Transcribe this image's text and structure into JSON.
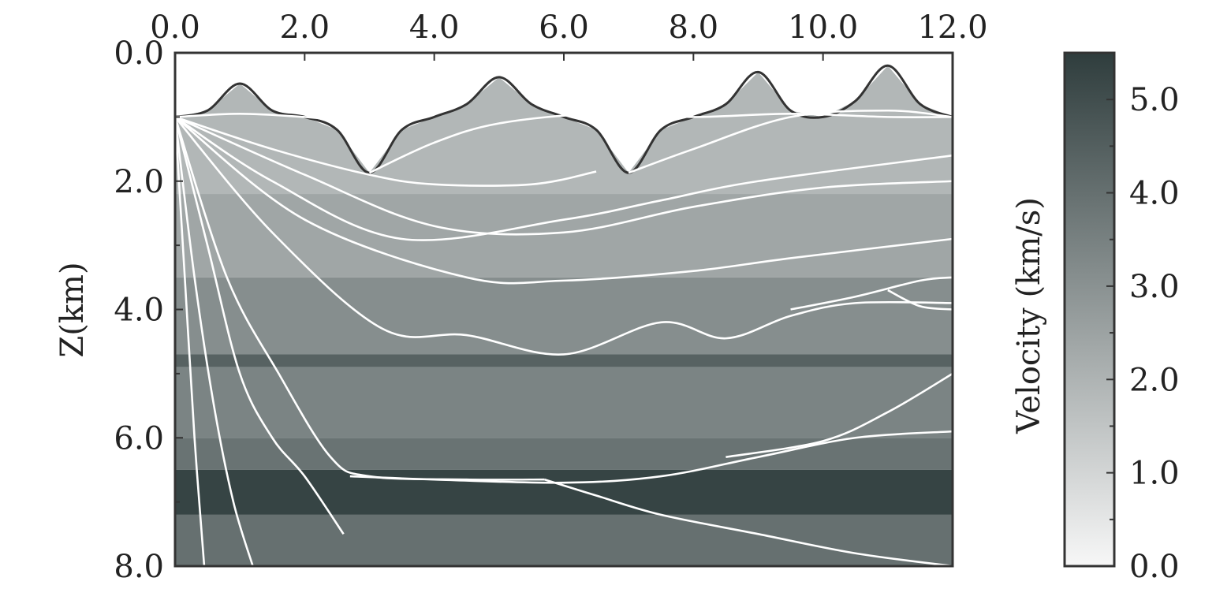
{
  "chart_data": {
    "type": "heatmap",
    "title": "",
    "xlabel": "",
    "ylabel": "Z(km)",
    "xlim": [
      0,
      12
    ],
    "ylim": [
      0,
      8
    ],
    "y_inverted": true,
    "x_ticks": [
      "0.0",
      "2.0",
      "4.0",
      "6.0",
      "8.0",
      "10.0",
      "12.0"
    ],
    "y_ticks": [
      "0.0",
      "2.0",
      "4.0",
      "6.0",
      "8.0"
    ],
    "colorbar": {
      "label": "Velocity (km/s)",
      "range": [
        0,
        5.5
      ],
      "ticks": [
        "0.0",
        "1.0",
        "2.0",
        "3.0",
        "4.0",
        "5.0"
      ],
      "cmap": [
        "#f7f7f7",
        "#2f3d3d"
      ]
    },
    "surface_topography": {
      "x": [
        0,
        0.5,
        1.0,
        1.5,
        2.0,
        2.5,
        3.0,
        3.5,
        4.0,
        4.5,
        5.0,
        5.5,
        6.0,
        6.5,
        7.0,
        7.5,
        8.0,
        8.5,
        9.0,
        9.5,
        10.0,
        10.5,
        11.0,
        11.5,
        12.0
      ],
      "z": [
        1.0,
        0.9,
        0.48,
        0.9,
        1.0,
        1.2,
        1.87,
        1.2,
        1.0,
        0.8,
        0.38,
        0.8,
        1.0,
        1.2,
        1.87,
        1.2,
        1.0,
        0.8,
        0.3,
        0.9,
        1.0,
        0.75,
        0.2,
        0.8,
        1.0
      ]
    },
    "velocity_layers": [
      {
        "z_top": 1.0,
        "z_bottom": 2.2,
        "v": 1.9
      },
      {
        "z_top": 2.2,
        "z_bottom": 3.5,
        "v": 2.4
      },
      {
        "z_top": 3.5,
        "z_bottom": 4.7,
        "v": 3.1
      },
      {
        "z_top": 4.7,
        "z_bottom": 4.9,
        "v": 4.4
      },
      {
        "z_top": 4.9,
        "z_bottom": 6.0,
        "v": 3.4
      },
      {
        "z_top": 6.0,
        "z_bottom": 6.5,
        "v": 3.9
      },
      {
        "z_top": 6.5,
        "z_bottom": 7.2,
        "v": 5.3
      },
      {
        "z_top": 7.2,
        "z_bottom": 8.0,
        "v": 4.0
      }
    ],
    "series": [
      {
        "x": [
          0,
          1.0,
          2.0,
          2.5
        ],
        "z": [
          1.0,
          0.95,
          1.0,
          1.05
        ]
      },
      {
        "x": [
          0,
          1.5,
          3.0,
          4.0,
          5.5,
          6.5
        ],
        "z": [
          1.0,
          1.5,
          1.9,
          2.05,
          2.05,
          1.85
        ]
      },
      {
        "x": [
          0,
          2.0,
          4.0,
          6.0,
          8.0,
          10.0,
          12.0
        ],
        "z": [
          1.0,
          1.9,
          2.7,
          2.8,
          2.4,
          2.1,
          2.0
        ]
      },
      {
        "x": [
          0,
          1.5,
          3.5,
          6.0,
          7.5,
          9.0,
          12.0
        ],
        "z": [
          1.0,
          2.0,
          2.9,
          2.6,
          2.3,
          2.0,
          1.6
        ]
      },
      {
        "x": [
          0,
          2.0,
          4.5,
          6.0,
          8.0,
          9.5,
          12.0
        ],
        "z": [
          1.0,
          2.6,
          3.5,
          3.55,
          3.4,
          3.2,
          2.9
        ]
      },
      {
        "x": [
          0,
          1.5,
          3.2,
          4.5,
          6.0,
          7.5,
          8.5,
          9.5,
          10.5,
          12.0
        ],
        "z": [
          1.0,
          2.8,
          4.3,
          4.4,
          4.7,
          4.2,
          4.45,
          4.1,
          3.9,
          3.9
        ]
      },
      {
        "x": [
          3.0,
          4.0,
          5.0,
          6.5,
          8.0,
          9.5,
          11.0,
          12.0
        ],
        "z": [
          1.87,
          1.4,
          1.1,
          0.95,
          1.0,
          0.95,
          1.0,
          1.0
        ]
      },
      {
        "x": [
          7.0,
          8.0,
          9.5,
          11.0,
          12.0
        ],
        "z": [
          1.87,
          1.5,
          1.0,
          0.9,
          1.0
        ]
      },
      {
        "x": [
          0,
          0.8,
          1.6,
          2.4,
          3.0,
          4.5,
          5.7
        ],
        "z": [
          1.0,
          3.5,
          5.0,
          6.3,
          6.6,
          6.65,
          6.65
        ]
      },
      {
        "x": [
          0,
          0.5,
          1.0,
          1.5,
          2.0,
          2.6
        ],
        "z": [
          1.0,
          3.0,
          5.0,
          6.0,
          6.6,
          7.5
        ]
      },
      {
        "x": [
          0,
          0.3,
          0.6,
          0.9,
          1.2
        ],
        "z": [
          1.0,
          3.5,
          5.5,
          7.0,
          8.0
        ]
      },
      {
        "x": [
          0,
          0.15,
          0.3,
          0.45
        ],
        "z": [
          1.0,
          3.5,
          6.0,
          8.0
        ]
      },
      {
        "x": [
          5.7,
          6.5,
          7.5,
          9.0,
          10.5,
          12.0
        ],
        "z": [
          6.65,
          6.9,
          7.2,
          7.5,
          7.8,
          8.0
        ]
      },
      {
        "x": [
          2.7,
          4.0,
          6.0,
          7.5,
          9.0,
          10.5,
          12.0
        ],
        "z": [
          6.6,
          6.65,
          6.7,
          6.6,
          6.3,
          6.0,
          5.9
        ]
      },
      {
        "x": [
          8.5,
          10.0,
          11.0,
          12.0
        ],
        "z": [
          6.3,
          6.05,
          5.6,
          5.0
        ]
      },
      {
        "x": [
          9.5,
          10.5,
          11.5,
          12.0
        ],
        "z": [
          4.0,
          3.8,
          3.55,
          3.5
        ]
      },
      {
        "x": [
          11.0,
          11.5,
          12.0
        ],
        "z": [
          3.7,
          3.95,
          4.0
        ]
      }
    ]
  }
}
